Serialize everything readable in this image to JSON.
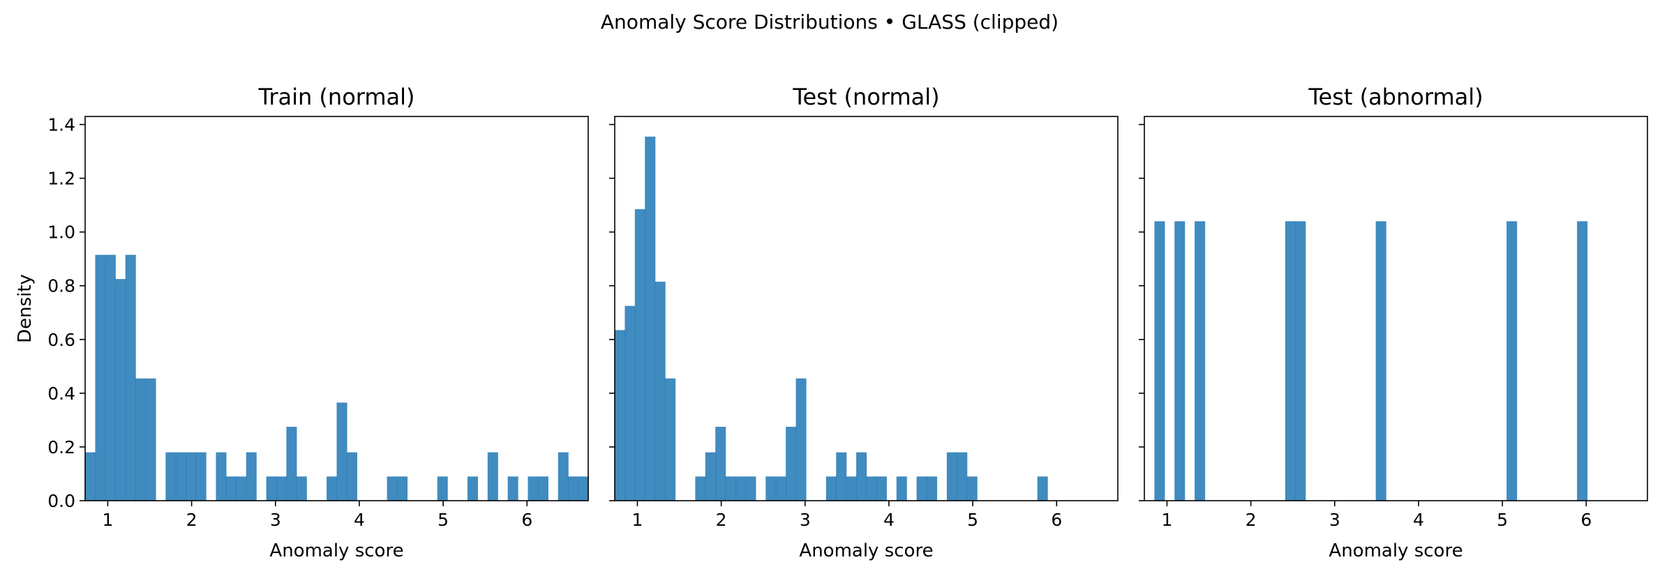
{
  "figure": {
    "suptitle": "Anomaly Score Distributions • GLASS (clipped)"
  },
  "chart_data": [
    {
      "type": "histogram",
      "title": "Train (normal)",
      "xlabel": "Anomaly score",
      "ylabel": "Density",
      "xlim": [
        0.73,
        6.73
      ],
      "ylim": [
        0,
        1.43
      ],
      "xticks": [
        1,
        2,
        3,
        4,
        5,
        6
      ],
      "yticks": [
        "0.0",
        "0.2",
        "0.4",
        "0.6",
        "0.8",
        "1.0",
        "1.2",
        "1.4"
      ],
      "color": "#1f77b4",
      "bin_width": 0.12,
      "bins": [
        {
          "x": 0.73,
          "y": 0.18
        },
        {
          "x": 0.85,
          "y": 0.915
        },
        {
          "x": 0.97,
          "y": 0.915
        },
        {
          "x": 1.09,
          "y": 0.825
        },
        {
          "x": 1.21,
          "y": 0.915
        },
        {
          "x": 1.33,
          "y": 0.455
        },
        {
          "x": 1.45,
          "y": 0.455
        },
        {
          "x": 1.69,
          "y": 0.18
        },
        {
          "x": 1.81,
          "y": 0.18
        },
        {
          "x": 1.93,
          "y": 0.18
        },
        {
          "x": 2.05,
          "y": 0.18
        },
        {
          "x": 2.29,
          "y": 0.18
        },
        {
          "x": 2.41,
          "y": 0.09
        },
        {
          "x": 2.53,
          "y": 0.09
        },
        {
          "x": 2.65,
          "y": 0.18
        },
        {
          "x": 2.89,
          "y": 0.09
        },
        {
          "x": 3.01,
          "y": 0.09
        },
        {
          "x": 3.13,
          "y": 0.275
        },
        {
          "x": 3.25,
          "y": 0.09
        },
        {
          "x": 3.61,
          "y": 0.09
        },
        {
          "x": 3.73,
          "y": 0.365
        },
        {
          "x": 3.85,
          "y": 0.18
        },
        {
          "x": 4.33,
          "y": 0.09
        },
        {
          "x": 4.45,
          "y": 0.09
        },
        {
          "x": 4.93,
          "y": 0.09
        },
        {
          "x": 5.29,
          "y": 0.09
        },
        {
          "x": 5.53,
          "y": 0.18
        },
        {
          "x": 5.77,
          "y": 0.09
        },
        {
          "x": 6.01,
          "y": 0.09
        },
        {
          "x": 6.13,
          "y": 0.09
        },
        {
          "x": 6.37,
          "y": 0.18
        },
        {
          "x": 6.49,
          "y": 0.09
        },
        {
          "x": 6.61,
          "y": 0.09
        }
      ]
    },
    {
      "type": "histogram",
      "title": "Test (normal)",
      "xlabel": "Anomaly score",
      "ylabel": "",
      "xlim": [
        0.73,
        6.73
      ],
      "ylim": [
        0,
        1.43
      ],
      "xticks": [
        1,
        2,
        3,
        4,
        5,
        6
      ],
      "yticks": [],
      "color": "#1f77b4",
      "bin_width": 0.12,
      "bins": [
        {
          "x": 0.73,
          "y": 0.635
        },
        {
          "x": 0.85,
          "y": 0.725
        },
        {
          "x": 0.97,
          "y": 1.085
        },
        {
          "x": 1.09,
          "y": 1.355
        },
        {
          "x": 1.21,
          "y": 0.815
        },
        {
          "x": 1.33,
          "y": 0.455
        },
        {
          "x": 1.69,
          "y": 0.09
        },
        {
          "x": 1.81,
          "y": 0.18
        },
        {
          "x": 1.93,
          "y": 0.275
        },
        {
          "x": 2.05,
          "y": 0.09
        },
        {
          "x": 2.17,
          "y": 0.09
        },
        {
          "x": 2.29,
          "y": 0.09
        },
        {
          "x": 2.53,
          "y": 0.09
        },
        {
          "x": 2.65,
          "y": 0.09
        },
        {
          "x": 2.77,
          "y": 0.275
        },
        {
          "x": 2.89,
          "y": 0.455
        },
        {
          "x": 3.25,
          "y": 0.09
        },
        {
          "x": 3.37,
          "y": 0.18
        },
        {
          "x": 3.49,
          "y": 0.09
        },
        {
          "x": 3.61,
          "y": 0.18
        },
        {
          "x": 3.73,
          "y": 0.09
        },
        {
          "x": 3.85,
          "y": 0.09
        },
        {
          "x": 4.09,
          "y": 0.09
        },
        {
          "x": 4.33,
          "y": 0.09
        },
        {
          "x": 4.45,
          "y": 0.09
        },
        {
          "x": 4.69,
          "y": 0.18
        },
        {
          "x": 4.81,
          "y": 0.18
        },
        {
          "x": 4.93,
          "y": 0.09
        },
        {
          "x": 5.77,
          "y": 0.09
        }
      ]
    },
    {
      "type": "histogram",
      "title": "Test (abnormal)",
      "xlabel": "Anomaly score",
      "ylabel": "",
      "xlim": [
        0.73,
        6.73
      ],
      "ylim": [
        0,
        1.43
      ],
      "xticks": [
        1,
        2,
        3,
        4,
        5,
        6
      ],
      "yticks": [],
      "color": "#1f77b4",
      "bin_width": 0.12,
      "bins": [
        {
          "x": 0.85,
          "y": 1.04
        },
        {
          "x": 1.09,
          "y": 1.04
        },
        {
          "x": 1.33,
          "y": 1.04
        },
        {
          "x": 2.41,
          "y": 1.04
        },
        {
          "x": 2.53,
          "y": 1.04
        },
        {
          "x": 3.49,
          "y": 1.04
        },
        {
          "x": 5.05,
          "y": 1.04
        },
        {
          "x": 5.89,
          "y": 1.04
        }
      ]
    }
  ]
}
